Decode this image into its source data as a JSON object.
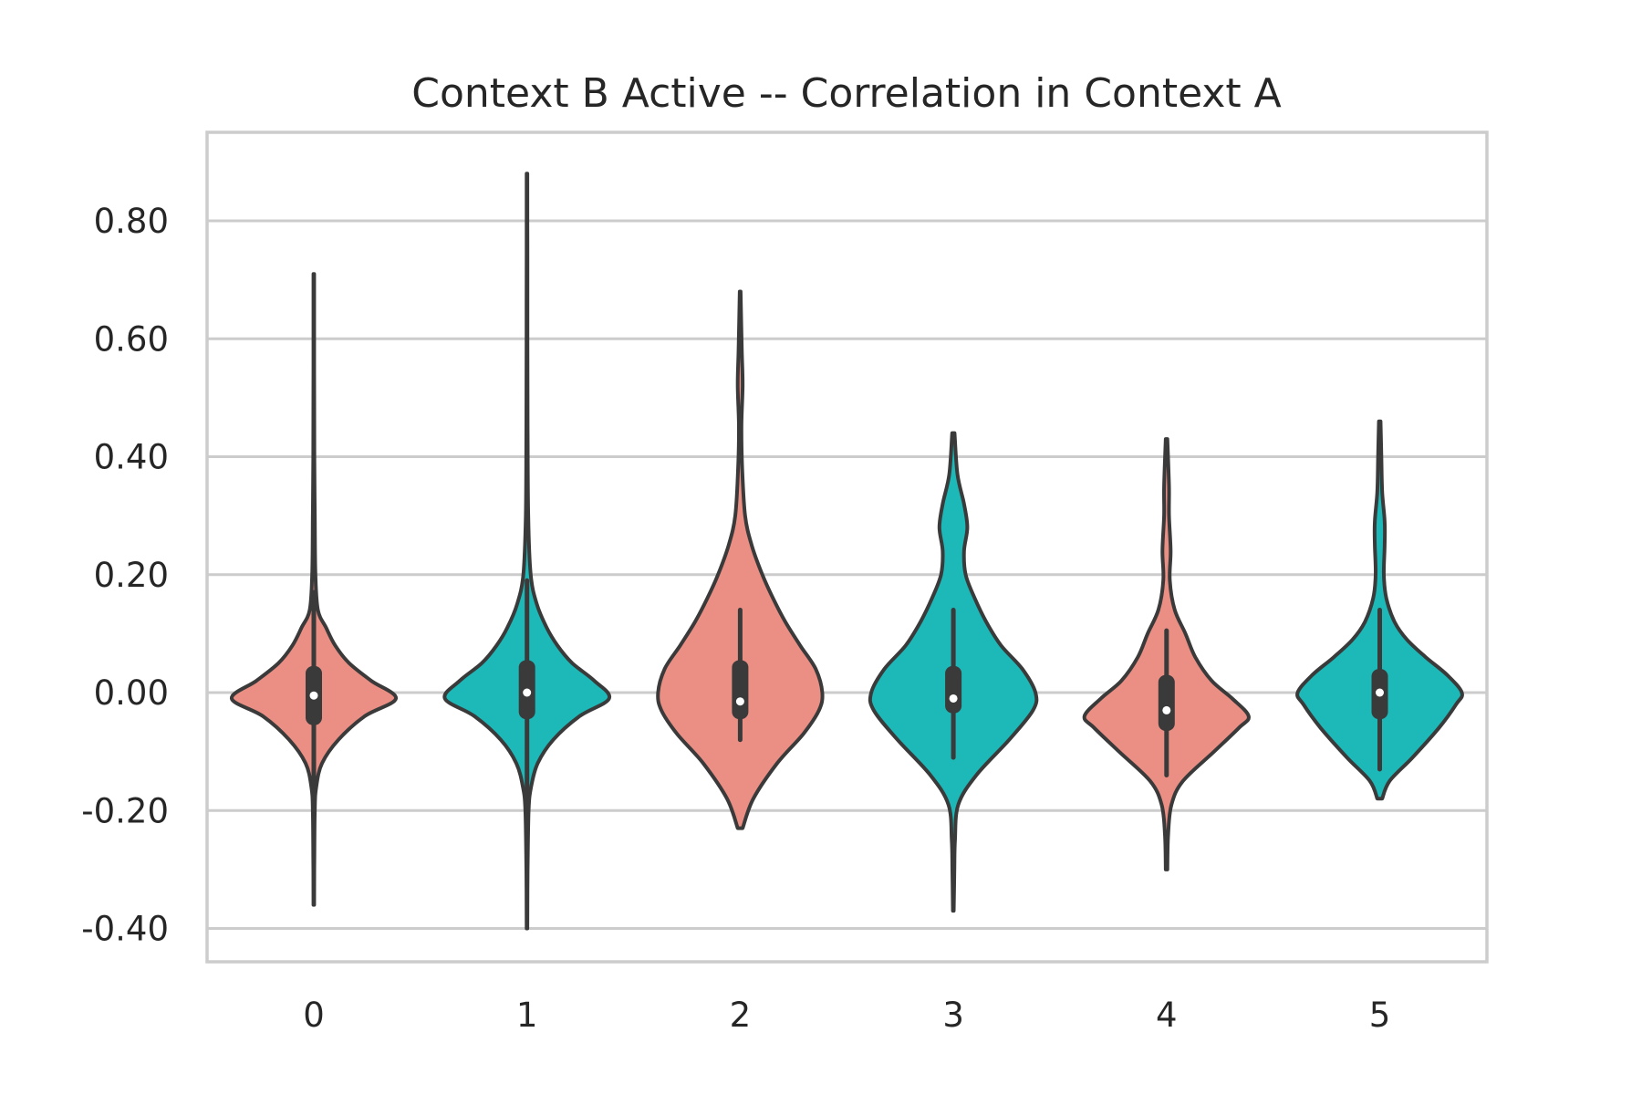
{
  "chart_data": {
    "type": "violin",
    "title": "Context B Active -- Correlation in Context A",
    "xlabel": "",
    "ylabel": "",
    "ylim": [
      -0.46,
      0.95
    ],
    "yticks": [
      0.8,
      0.6,
      0.4,
      0.2,
      0.0,
      -0.2,
      -0.4
    ],
    "ytick_labels": [
      "0.80",
      "0.60",
      "0.40",
      "0.20",
      "0.00",
      "-0.20",
      "-0.40"
    ],
    "categories": [
      "0",
      "1",
      "2",
      "3",
      "4",
      "5"
    ],
    "grid": true,
    "colors": {
      "salmon": "#EB8F85",
      "teal": "#1DB8B8",
      "outline": "#3A3A3A",
      "grid": "#CCCCCC"
    },
    "series": [
      {
        "category": "0",
        "color": "salmon",
        "min": -0.36,
        "max": 0.71,
        "q1": -0.055,
        "median": -0.005,
        "q3": 0.045,
        "whisker_low": -0.17,
        "whisker_high": 0.17,
        "density": [
          [
            -0.36,
            0.004
          ],
          [
            -0.3,
            0.006
          ],
          [
            -0.2,
            0.012
          ],
          [
            -0.16,
            0.03
          ],
          [
            -0.12,
            0.1
          ],
          [
            -0.08,
            0.3
          ],
          [
            -0.04,
            0.62
          ],
          [
            -0.01,
            1.0
          ],
          [
            0.02,
            0.7
          ],
          [
            0.05,
            0.43
          ],
          [
            0.08,
            0.26
          ],
          [
            0.11,
            0.15
          ],
          [
            0.14,
            0.05
          ],
          [
            0.2,
            0.02
          ],
          [
            0.3,
            0.012
          ],
          [
            0.4,
            0.007
          ],
          [
            0.55,
            0.005
          ],
          [
            0.71,
            0.004
          ]
        ]
      },
      {
        "category": "1",
        "color": "teal",
        "min": -0.4,
        "max": 0.88,
        "q1": -0.045,
        "median": 0.0,
        "q3": 0.055,
        "whisker_low": -0.19,
        "whisker_high": 0.19,
        "density": [
          [
            -0.4,
            0.004
          ],
          [
            -0.3,
            0.008
          ],
          [
            -0.2,
            0.02
          ],
          [
            -0.16,
            0.05
          ],
          [
            -0.12,
            0.13
          ],
          [
            -0.08,
            0.32
          ],
          [
            -0.04,
            0.64
          ],
          [
            -0.01,
            1.0
          ],
          [
            0.02,
            0.82
          ],
          [
            0.05,
            0.55
          ],
          [
            0.08,
            0.37
          ],
          [
            0.11,
            0.24
          ],
          [
            0.15,
            0.12
          ],
          [
            0.2,
            0.045
          ],
          [
            0.3,
            0.015
          ],
          [
            0.45,
            0.008
          ],
          [
            0.6,
            0.006
          ],
          [
            0.75,
            0.005
          ],
          [
            0.88,
            0.004
          ]
        ]
      },
      {
        "category": "2",
        "color": "salmon",
        "min": -0.23,
        "max": 0.68,
        "q1": -0.045,
        "median": -0.015,
        "q3": 0.055,
        "whisker_low": -0.08,
        "whisker_high": 0.14,
        "density": [
          [
            -0.23,
            0.03
          ],
          [
            -0.18,
            0.16
          ],
          [
            -0.12,
            0.45
          ],
          [
            -0.07,
            0.77
          ],
          [
            -0.03,
            0.96
          ],
          [
            0.0,
            1.0
          ],
          [
            0.04,
            0.92
          ],
          [
            0.08,
            0.73
          ],
          [
            0.12,
            0.55
          ],
          [
            0.16,
            0.4
          ],
          [
            0.2,
            0.27
          ],
          [
            0.25,
            0.14
          ],
          [
            0.3,
            0.06
          ],
          [
            0.38,
            0.025
          ],
          [
            0.45,
            0.015
          ],
          [
            0.52,
            0.03
          ],
          [
            0.58,
            0.02
          ],
          [
            0.68,
            0.005
          ]
        ]
      },
      {
        "category": "3",
        "color": "teal",
        "min": -0.37,
        "max": 0.44,
        "q1": -0.035,
        "median": -0.01,
        "q3": 0.045,
        "whisker_low": -0.11,
        "whisker_high": 0.14,
        "density": [
          [
            -0.37,
            0.005
          ],
          [
            -0.3,
            0.012
          ],
          [
            -0.25,
            0.02
          ],
          [
            -0.19,
            0.06
          ],
          [
            -0.14,
            0.28
          ],
          [
            -0.08,
            0.68
          ],
          [
            -0.03,
            0.97
          ],
          [
            0.0,
            1.0
          ],
          [
            0.04,
            0.84
          ],
          [
            0.08,
            0.58
          ],
          [
            0.12,
            0.4
          ],
          [
            0.16,
            0.26
          ],
          [
            0.2,
            0.15
          ],
          [
            0.24,
            0.13
          ],
          [
            0.28,
            0.17
          ],
          [
            0.32,
            0.13
          ],
          [
            0.37,
            0.05
          ],
          [
            0.44,
            0.015
          ]
        ]
      },
      {
        "category": "4",
        "color": "salmon",
        "min": -0.3,
        "max": 0.43,
        "q1": -0.065,
        "median": -0.03,
        "q3": 0.03,
        "whisker_low": -0.14,
        "whisker_high": 0.105,
        "density": [
          [
            -0.3,
            0.01
          ],
          [
            -0.24,
            0.02
          ],
          [
            -0.19,
            0.06
          ],
          [
            -0.15,
            0.2
          ],
          [
            -0.1,
            0.58
          ],
          [
            -0.06,
            0.88
          ],
          [
            -0.04,
            1.0
          ],
          [
            -0.01,
            0.8
          ],
          [
            0.02,
            0.55
          ],
          [
            0.06,
            0.35
          ],
          [
            0.1,
            0.23
          ],
          [
            0.14,
            0.1
          ],
          [
            0.19,
            0.04
          ],
          [
            0.24,
            0.05
          ],
          [
            0.3,
            0.03
          ],
          [
            0.35,
            0.03
          ],
          [
            0.43,
            0.01
          ]
        ]
      },
      {
        "category": "5",
        "color": "teal",
        "min": -0.18,
        "max": 0.46,
        "q1": -0.045,
        "median": 0.0,
        "q3": 0.04,
        "whisker_low": -0.13,
        "whisker_high": 0.14,
        "density": [
          [
            -0.18,
            0.03
          ],
          [
            -0.15,
            0.12
          ],
          [
            -0.11,
            0.4
          ],
          [
            -0.06,
            0.72
          ],
          [
            -0.02,
            0.93
          ],
          [
            0.0,
            1.0
          ],
          [
            0.03,
            0.82
          ],
          [
            0.06,
            0.56
          ],
          [
            0.09,
            0.33
          ],
          [
            0.12,
            0.18
          ],
          [
            0.16,
            0.08
          ],
          [
            0.2,
            0.05
          ],
          [
            0.25,
            0.06
          ],
          [
            0.29,
            0.06
          ],
          [
            0.34,
            0.03
          ],
          [
            0.4,
            0.02
          ],
          [
            0.46,
            0.01
          ]
        ]
      }
    ]
  }
}
